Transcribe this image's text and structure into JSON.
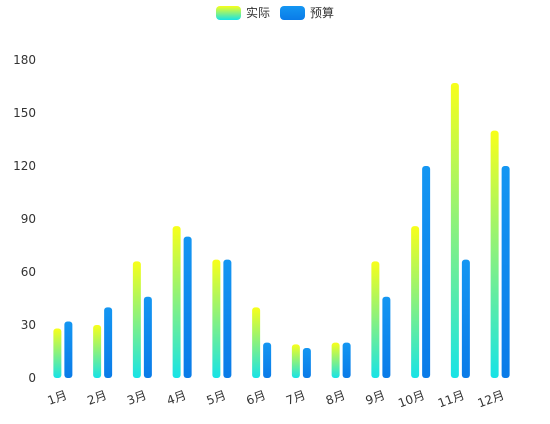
{
  "legend": {
    "actual_label": "实际",
    "budget_label": "预算"
  },
  "colors": {
    "actual_top": "#f8ff1a",
    "actual_bottom": "#17e3e6",
    "budget_top": "#1496f2",
    "budget_bottom": "#0a7be8",
    "axis_text": "#333333"
  },
  "chart_data": {
    "type": "bar",
    "categories": [
      "1月",
      "2月",
      "3月",
      "4月",
      "5月",
      "6月",
      "7月",
      "8月",
      "9月",
      "10月",
      "11月",
      "12月"
    ],
    "series": [
      {
        "name": "实际",
        "values": [
          28,
          30,
          66,
          86,
          67,
          40,
          19,
          20,
          66,
          86,
          167,
          140
        ]
      },
      {
        "name": "预算",
        "values": [
          32,
          40,
          46,
          80,
          67,
          20,
          17,
          20,
          46,
          120,
          67,
          120
        ]
      }
    ],
    "y_ticks": [
      0,
      30,
      60,
      90,
      120,
      150,
      180
    ],
    "ylim": [
      0,
      180
    ],
    "grid": false,
    "legend_position": "top-center",
    "title": "",
    "xlabel": "",
    "ylabel": ""
  }
}
